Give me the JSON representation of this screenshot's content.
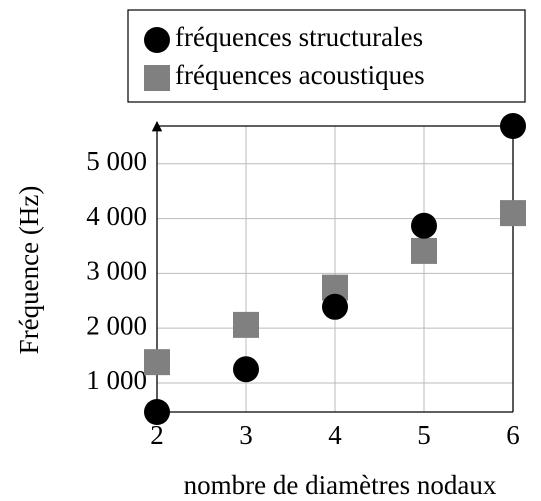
{
  "chart_data": {
    "type": "scatter",
    "xlabel": "nombre de diamètres nodaux",
    "ylabel": "Fréquence (Hz)",
    "xlim": [
      2,
      6
    ],
    "xticks": [
      2,
      3,
      4,
      5,
      6
    ],
    "ylim": [
      470,
      5690
    ],
    "yticks": [
      {
        "value": 1000,
        "label": "1 000"
      },
      {
        "value": 2000,
        "label": "2 000"
      },
      {
        "value": 3000,
        "label": "3 000"
      },
      {
        "value": 4000,
        "label": "4 000"
      },
      {
        "value": 5000,
        "label": "5 000"
      }
    ],
    "grid": true,
    "legend": "top",
    "series": [
      {
        "name": "fréquences structurales",
        "color": "#000000",
        "marker": "circle",
        "x": [
          2,
          3,
          4,
          5,
          6
        ],
        "values": [
          470,
          1250,
          2390,
          3870,
          5690
        ]
      },
      {
        "name": "fréquences acoustiques",
        "color": "#808080",
        "marker": "square",
        "x": [
          2,
          3,
          4,
          5,
          6
        ],
        "values": [
          1380,
          2060,
          2740,
          3410,
          4100
        ]
      }
    ]
  }
}
